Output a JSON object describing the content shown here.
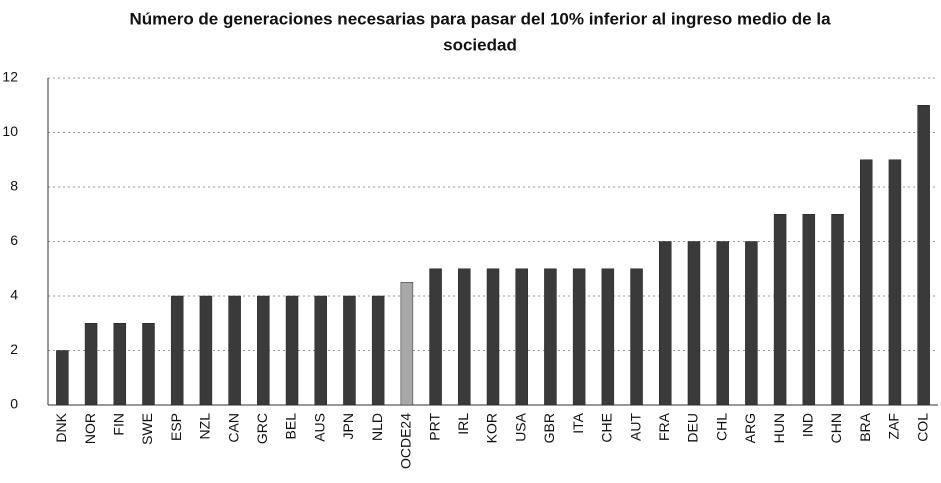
{
  "chart_data": {
    "type": "bar",
    "title": [
      "Número de generaciones necesarias para pasar del 10% inferior al ingreso medio de la",
      "sociedad"
    ],
    "categories": [
      "DNK",
      "NOR",
      "FIN",
      "SWE",
      "ESP",
      "NZL",
      "CAN",
      "GRC",
      "BEL",
      "AUS",
      "JPN",
      "NLD",
      "OCDE24",
      "PRT",
      "IRL",
      "KOR",
      "USA",
      "GBR",
      "ITA",
      "CHE",
      "AUT",
      "FRA",
      "DEU",
      "CHL",
      "ARG",
      "HUN",
      "IND",
      "CHN",
      "BRA",
      "ZAF",
      "COL"
    ],
    "values": [
      2,
      3,
      3,
      3,
      4,
      4,
      4,
      4,
      4,
      4,
      4,
      4,
      4.5,
      5,
      5,
      5,
      5,
      5,
      5,
      5,
      5,
      6,
      6,
      6,
      6,
      7,
      7,
      7,
      9,
      9,
      11
    ],
    "color": "#3a3a3a",
    "highlight": {
      "category": "OCDE24",
      "color": "#a8a8a8"
    },
    "ylim": [
      0,
      12
    ],
    "yticks": [
      0,
      2,
      4,
      6,
      8,
      10,
      12
    ],
    "grid": true
  }
}
